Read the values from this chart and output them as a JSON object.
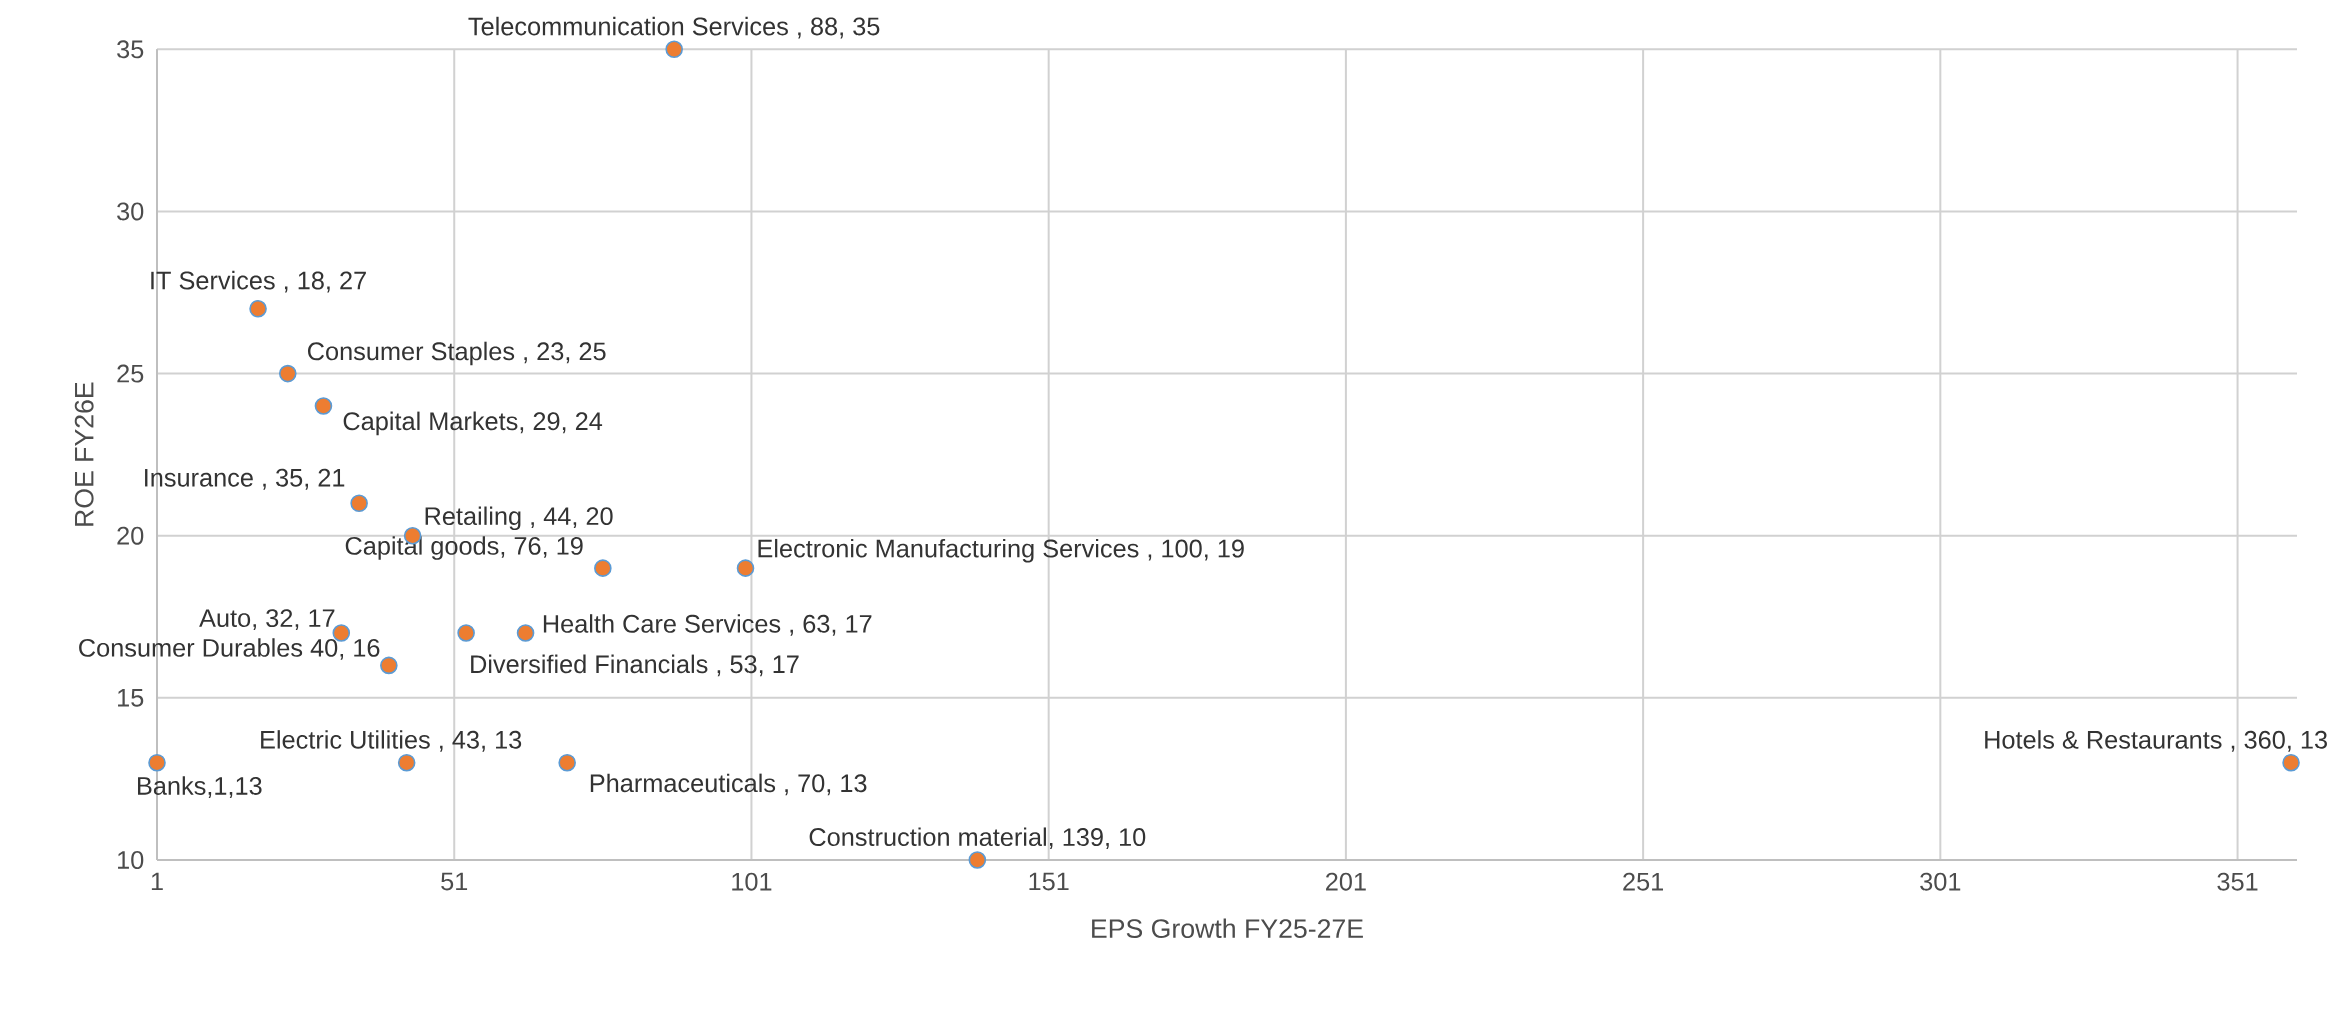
{
  "chart_data": {
    "type": "scatter",
    "xlabel": "EPS Growth FY25-27E",
    "ylabel": "ROE FY26E",
    "x": [
      88,
      18,
      23,
      29,
      35,
      44,
      76,
      100,
      32,
      63,
      40,
      53,
      43,
      70,
      1,
      139,
      360
    ],
    "values": [
      35,
      27,
      25,
      24,
      21,
      20,
      19,
      19,
      17,
      17,
      16,
      17,
      13,
      13,
      13,
      10,
      13
    ],
    "color": "#ed7d31",
    "grid": true,
    "xlim": [
      1,
      361
    ],
    "xticks": [
      1,
      51,
      101,
      151,
      201,
      251,
      301,
      351
    ],
    "ylim": [
      10,
      35
    ],
    "yticks": [
      10,
      15,
      20,
      25,
      30,
      35
    ],
    "annotations": [
      {
        "text": "Telecommunication Services , 88, 35",
        "x": 88,
        "y": 35
      },
      {
        "text": "IT Services , 18, 27",
        "x": 18,
        "y": 27
      },
      {
        "text": "Consumer Staples , 23, 25",
        "x": 23,
        "y": 25
      },
      {
        "text": "Capital Markets, 29, 24",
        "x": 29,
        "y": 24
      },
      {
        "text": "Insurance , 35, 21",
        "x": 35,
        "y": 21
      },
      {
        "text": "Retailing , 44, 20",
        "x": 44,
        "y": 20
      },
      {
        "text": "Capital goods, 76, 19",
        "x": 76,
        "y": 19
      },
      {
        "text": "Electronic Manufacturing Services , 100, 19",
        "x": 100,
        "y": 19
      },
      {
        "text": "Auto, 32, 17",
        "x": 32,
        "y": 17
      },
      {
        "text": "Health Care Services , 63, 17",
        "x": 63,
        "y": 17
      },
      {
        "text": "Consumer Durables 40, 16",
        "x": 40,
        "y": 16
      },
      {
        "text": "Diversified Financials , 53, 17",
        "x": 53,
        "y": 17
      },
      {
        "text": "Electric Utilities , 43, 13",
        "x": 43,
        "y": 13
      },
      {
        "text": "Pharmaceuticals , 70, 13",
        "x": 70,
        "y": 13
      },
      {
        "text": "Banks,1,13",
        "x": 1,
        "y": 13
      },
      {
        "text": "Construction material, 139, 10",
        "x": 139,
        "y": 10
      },
      {
        "text": "Hotels & Restaurants , 360, 13",
        "x": 360,
        "y": 13
      }
    ]
  }
}
